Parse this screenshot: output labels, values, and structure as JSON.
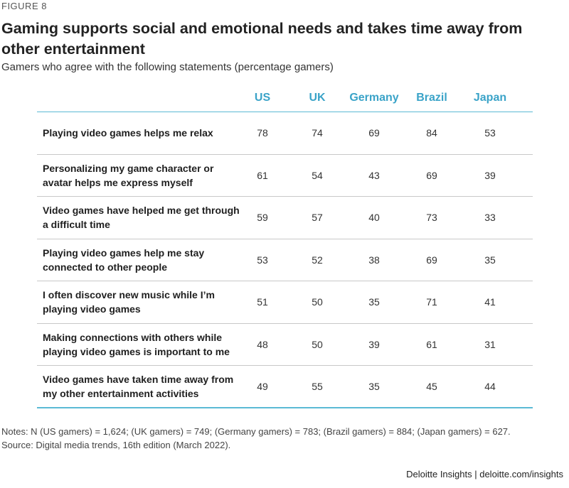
{
  "figure_label": "FIGURE 8",
  "title": "Gaming supports social and emotional needs and takes time away from other entertainment",
  "subtitle": "Gamers who agree with the following statements (percentage gamers)",
  "chart_data": {
    "type": "table",
    "columns": [
      "US",
      "UK",
      "Germany",
      "Brazil",
      "Japan"
    ],
    "rows": [
      {
        "label": "Playing video games helps me relax",
        "values": [
          78,
          74,
          69,
          84,
          53
        ]
      },
      {
        "label": "Personalizing my game character or avatar helps me express myself",
        "values": [
          61,
          54,
          43,
          69,
          39
        ]
      },
      {
        "label": "Video games have helped me get through a difficult time",
        "values": [
          59,
          57,
          40,
          73,
          33
        ]
      },
      {
        "label": "Playing video games help me stay connected to other people",
        "values": [
          53,
          52,
          38,
          69,
          35
        ]
      },
      {
        "label": "I often discover new music while I’m playing video games",
        "values": [
          51,
          50,
          35,
          71,
          41
        ]
      },
      {
        "label": "Making connections with others while playing video games is important to me",
        "values": [
          48,
          50,
          39,
          61,
          31
        ]
      },
      {
        "label": "Video games have taken time away from my other entertainment activities",
        "values": [
          49,
          55,
          35,
          45,
          44
        ]
      }
    ]
  },
  "notes": [
    "Notes: N (US gamers) = 1,624; (UK gamers) = 749; (Germany gamers) = 783; (Brazil gamers) = 884; (Japan gamers) = 627.",
    "Source: Digital media trends, 16th edition (March 2022)."
  ],
  "footer": "Deloitte Insights | deloitte.com/insights",
  "colors": {
    "accent": "#3aa3c8",
    "rule": "#5bbad5",
    "divider": "#c8c8c8"
  }
}
